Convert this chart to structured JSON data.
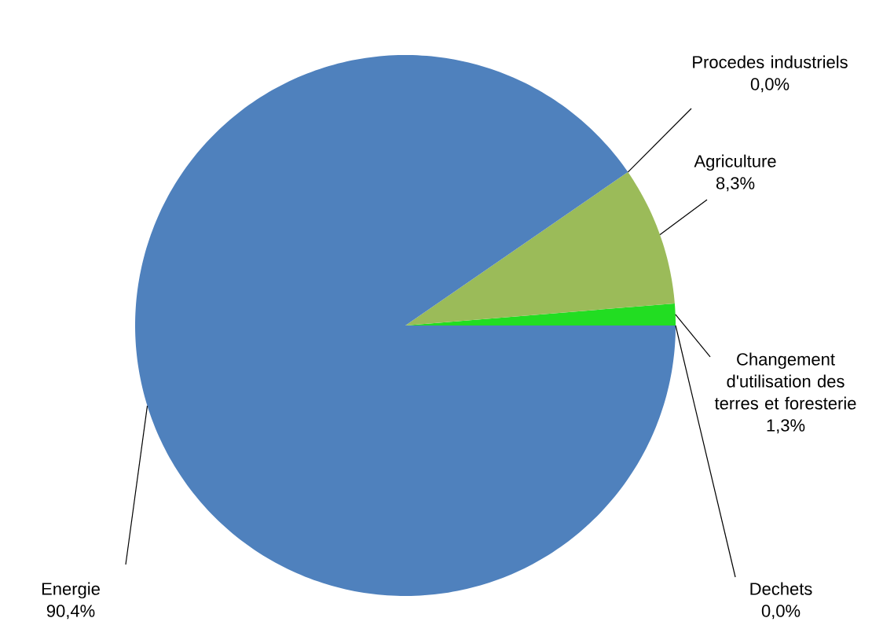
{
  "chart_data": {
    "type": "pie",
    "categories": [
      "Dechets",
      "Changement d'utilisation des terres et foresterie",
      "Agriculture",
      "Procedes industriels",
      "Energie"
    ],
    "values": [
      0.0,
      1.3,
      8.3,
      0.0,
      90.4
    ],
    "value_labels": [
      "0,0%",
      "1,3%",
      "8,3%",
      "0,0%",
      "90,4%"
    ],
    "colors": [
      "#8064a2",
      "#22dd22",
      "#9bbb59",
      "#c0504d",
      "#4f81bd"
    ]
  }
}
